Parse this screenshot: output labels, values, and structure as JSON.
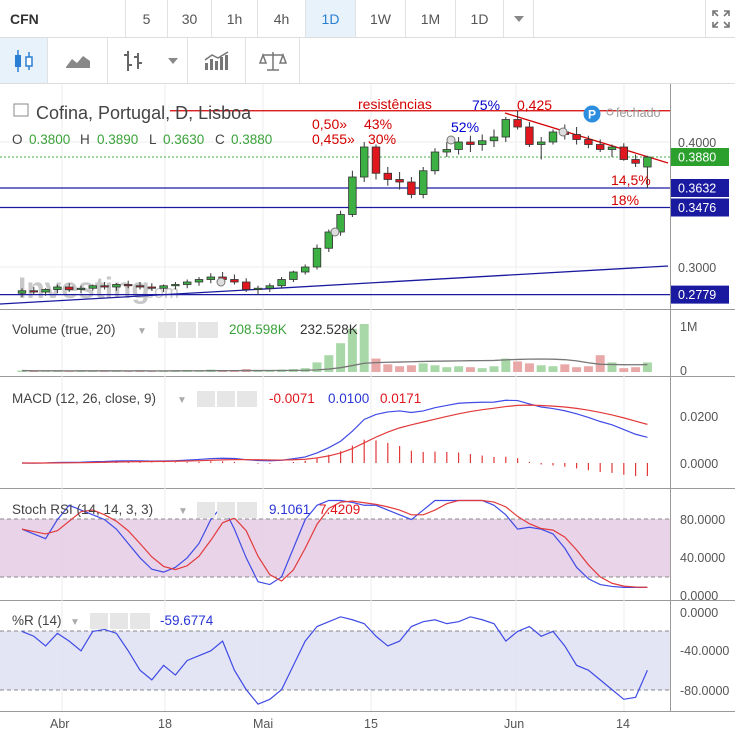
{
  "toolbar": {
    "symbol": "CFN",
    "intervals": [
      "5",
      "30",
      "1h",
      "4h",
      "1D",
      "1W",
      "1M"
    ],
    "active_interval": "1D",
    "range_value": "1D"
  },
  "header": {
    "title": "Cofina, Portugal, D, Lisboa",
    "status": "fechado",
    "status_badge": "P",
    "ohlc": {
      "O_label": "O",
      "O": "0.3800",
      "H_label": "H",
      "H": "0.3890",
      "L_label": "L",
      "L": "0.3630",
      "C_label": "C",
      "C": "0.3880"
    },
    "watermark": "Investing",
    "watermark_suffix": ".com"
  },
  "annotations": {
    "resist_label": "resistências",
    "pct_75": "75%",
    "val_0425": "0,425",
    "val_050": "0,50»",
    "pct_43": "43%",
    "val_0455": "0,455»",
    "pct_30": "30%",
    "pct_52": "52%",
    "pct_145": "14,5%",
    "pct_18": "18%"
  },
  "price_axis": {
    "ticks": [
      "0.4000",
      "0.3000"
    ],
    "badges": [
      {
        "label": "0.3880",
        "color": "#2ca02c"
      },
      {
        "label": "0.3632",
        "color": "#1a1aa0"
      },
      {
        "label": "0.3476",
        "color": "#1a1aa0"
      },
      {
        "label": "0.2779",
        "color": "#1a1aa0"
      }
    ],
    "horizontal_levels": [
      0.3632,
      0.3476,
      0.2779
    ],
    "resistance_level": 0.425
  },
  "volume": {
    "label": "Volume (true, 20)",
    "v1": "208.598K",
    "v2": "232.528K",
    "ticks": [
      "1M",
      "0"
    ]
  },
  "macd": {
    "label": "MACD (12, 26, close, 9)",
    "hist": "-0.0071",
    "macd": "0.0100",
    "signal": "0.0171",
    "ticks": [
      "0.0200",
      "0.0000"
    ]
  },
  "stoch": {
    "label": "Stoch RSI (14, 14, 3, 3)",
    "k": "9.1061",
    "d": "7.4209",
    "ticks": [
      "80.0000",
      "40.0000",
      "0.0000"
    ]
  },
  "wr": {
    "label": "%R (14)",
    "value": "-59.6774",
    "ticks": [
      "0.0000",
      "-40.0000",
      "-80.0000"
    ]
  },
  "x_axis": {
    "labels": [
      "Abr",
      "18",
      "Mai",
      "15",
      "Jun",
      "14"
    ]
  },
  "colors": {
    "up": "#3cb043",
    "down": "#e0171e",
    "resistance": "#d40000",
    "support": "#1a1aa0",
    "macd_line": "#3f4be6",
    "signal_line": "#e23a3a",
    "stoch_band": "#e4c8e4",
    "wr_band": "#dfe0f2"
  },
  "chart_data": {
    "type": "candlestick",
    "title": "Cofina, Portugal, D, Lisboa",
    "ohlc": [
      [
        0.279,
        0.283,
        0.276,
        0.281
      ],
      [
        0.281,
        0.284,
        0.278,
        0.28
      ],
      [
        0.28,
        0.283,
        0.277,
        0.282
      ],
      [
        0.282,
        0.286,
        0.279,
        0.284
      ],
      [
        0.284,
        0.287,
        0.28,
        0.282
      ],
      [
        0.282,
        0.285,
        0.279,
        0.283
      ],
      [
        0.283,
        0.286,
        0.281,
        0.285
      ],
      [
        0.285,
        0.288,
        0.282,
        0.284
      ],
      [
        0.284,
        0.287,
        0.281,
        0.286
      ],
      [
        0.286,
        0.289,
        0.283,
        0.285
      ],
      [
        0.285,
        0.288,
        0.282,
        0.284
      ],
      [
        0.284,
        0.287,
        0.281,
        0.283
      ],
      [
        0.283,
        0.286,
        0.28,
        0.285
      ],
      [
        0.285,
        0.288,
        0.282,
        0.286
      ],
      [
        0.286,
        0.29,
        0.283,
        0.288
      ],
      [
        0.288,
        0.292,
        0.285,
        0.29
      ],
      [
        0.29,
        0.295,
        0.287,
        0.292
      ],
      [
        0.292,
        0.296,
        0.288,
        0.29
      ],
      [
        0.29,
        0.294,
        0.286,
        0.288
      ],
      [
        0.288,
        0.291,
        0.28,
        0.282
      ],
      [
        0.282,
        0.285,
        0.278,
        0.283
      ],
      [
        0.283,
        0.287,
        0.28,
        0.285
      ],
      [
        0.285,
        0.292,
        0.283,
        0.29
      ],
      [
        0.29,
        0.297,
        0.288,
        0.296
      ],
      [
        0.296,
        0.302,
        0.294,
        0.3
      ],
      [
        0.3,
        0.318,
        0.298,
        0.315
      ],
      [
        0.315,
        0.33,
        0.312,
        0.328
      ],
      [
        0.328,
        0.345,
        0.325,
        0.342
      ],
      [
        0.342,
        0.377,
        0.34,
        0.372
      ],
      [
        0.372,
        0.4,
        0.368,
        0.396
      ],
      [
        0.396,
        0.398,
        0.37,
        0.375
      ],
      [
        0.375,
        0.38,
        0.365,
        0.37
      ],
      [
        0.37,
        0.376,
        0.362,
        0.368
      ],
      [
        0.368,
        0.372,
        0.355,
        0.358
      ],
      [
        0.358,
        0.38,
        0.355,
        0.377
      ],
      [
        0.377,
        0.395,
        0.374,
        0.392
      ],
      [
        0.392,
        0.4,
        0.388,
        0.394
      ],
      [
        0.394,
        0.404,
        0.39,
        0.4
      ],
      [
        0.4,
        0.405,
        0.392,
        0.398
      ],
      [
        0.398,
        0.406,
        0.393,
        0.401
      ],
      [
        0.401,
        0.41,
        0.396,
        0.404
      ],
      [
        0.404,
        0.42,
        0.4,
        0.418
      ],
      [
        0.418,
        0.425,
        0.41,
        0.412
      ],
      [
        0.412,
        0.416,
        0.396,
        0.398
      ],
      [
        0.398,
        0.404,
        0.386,
        0.4
      ],
      [
        0.4,
        0.41,
        0.398,
        0.408
      ],
      [
        0.408,
        0.414,
        0.402,
        0.406
      ],
      [
        0.406,
        0.412,
        0.398,
        0.402
      ],
      [
        0.402,
        0.405,
        0.395,
        0.398
      ],
      [
        0.398,
        0.402,
        0.392,
        0.394
      ],
      [
        0.394,
        0.398,
        0.388,
        0.396
      ],
      [
        0.396,
        0.399,
        0.385,
        0.386
      ],
      [
        0.386,
        0.39,
        0.38,
        0.383
      ],
      [
        0.38,
        0.389,
        0.363,
        0.388
      ]
    ],
    "ylim": [
      0.27,
      0.43
    ],
    "x_tick_labels": [
      "Abr",
      "18",
      "Mai",
      "15",
      "Jun",
      "14"
    ],
    "levels": {
      "resistance": 0.425,
      "supports": [
        0.3632,
        0.3476,
        0.2779
      ]
    }
  }
}
